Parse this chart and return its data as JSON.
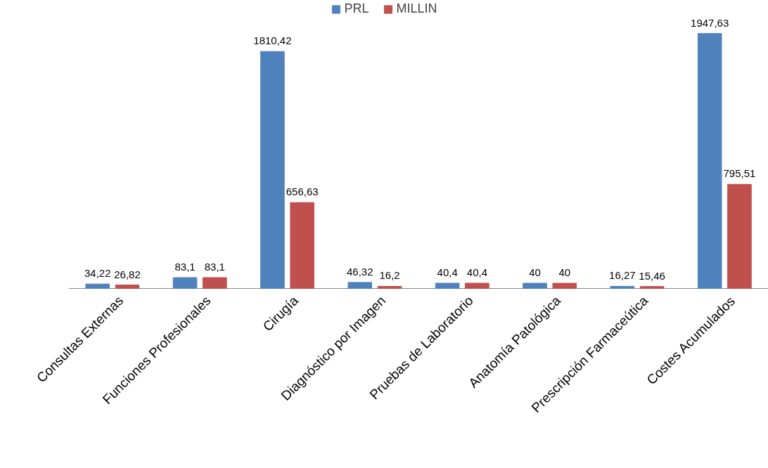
{
  "chart_data": {
    "type": "bar",
    "categories": [
      "Consultas Externas",
      "Funciones Profesionales",
      "Cirugía",
      "Diagnóstico por Imagen",
      "Pruebas de Laboratorio",
      "Anatomía Patológica",
      "Prescripción Farmaceútica",
      "Costes Acumulados"
    ],
    "series": [
      {
        "name": "PRL",
        "color": "#4f81bd",
        "values": [
          34.22,
          83.1,
          1810.42,
          46.32,
          40.4,
          40,
          16.27,
          1947.63
        ],
        "value_labels": [
          "34,22",
          "83,1",
          "1810,42",
          "46,32",
          "40,4",
          "40",
          "16,27",
          "1947,63"
        ]
      },
      {
        "name": "MILLIN",
        "color": "#c0504d",
        "values": [
          26.82,
          83.1,
          656.63,
          16.2,
          40.4,
          40,
          15.46,
          795.51
        ],
        "value_labels": [
          "26,82",
          "83,1",
          "656,63",
          "16,2",
          "40,4",
          "40",
          "15,46",
          "795,51"
        ]
      }
    ],
    "legend": "top"
  }
}
